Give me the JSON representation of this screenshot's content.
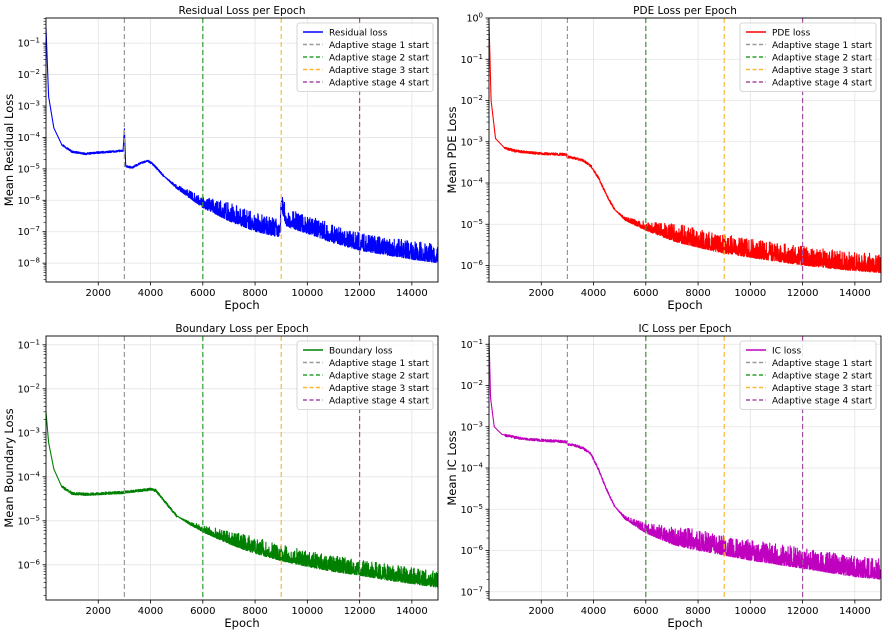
{
  "chart_data": [
    {
      "type": "line",
      "title": "Residual Loss per Epoch",
      "xlabel": "Epoch",
      "ylabel": "Mean Residual Loss",
      "yscale": "log",
      "xlim": [
        0,
        15000
      ],
      "ylim_exp": [
        -8.6,
        -0.2
      ],
      "xticks": [
        2000,
        4000,
        6000,
        8000,
        10000,
        12000,
        14000
      ],
      "yticks_exp": [
        -8,
        -7,
        -6,
        -5,
        -4,
        -3,
        -2,
        -1
      ],
      "grid": true,
      "legend_position": "top-right",
      "series": [
        {
          "name": "Residual loss",
          "color": "#0000ff",
          "x": [
            0,
            100,
            300,
            600,
            1000,
            1500,
            2000,
            2500,
            2950,
            3000,
            3050,
            3300,
            3600,
            3900,
            4100,
            4500,
            5000,
            6000,
            7000,
            8000,
            8950,
            9000,
            9200,
            10000,
            11000,
            12000,
            13000,
            14000,
            15000
          ],
          "y": [
            0.3,
            0.002,
            0.0002,
            6e-05,
            3.5e-05,
            3e-05,
            3.3e-05,
            3.5e-05,
            3.8e-05,
            0.00018,
            1.2e-05,
            1.1e-05,
            1.5e-05,
            1.8e-05,
            1.4e-05,
            6e-06,
            2.5e-06,
            7e-07,
            3e-07,
            1.4e-07,
            9e-08,
            7e-07,
            2e-07,
            1.2e-07,
            6e-08,
            3.5e-08,
            2.5e-08,
            1.8e-08,
            1.4e-08
          ],
          "noise_after": 4500,
          "noise_decades": 0.45
        }
      ],
      "vlines": [
        {
          "x": 3000,
          "name": "Adaptive stage 1 start",
          "color": "#999999"
        },
        {
          "x": 6000,
          "name": "Adaptive stage 2 start",
          "color": "#2ca02c"
        },
        {
          "x": 9000,
          "name": "Adaptive stage 3 start",
          "color": "#ffb733"
        },
        {
          "x": 12000,
          "name": "Adaptive stage 4 start",
          "color": "#a64ca6"
        }
      ]
    },
    {
      "type": "line",
      "title": "PDE Loss per Epoch",
      "xlabel": "Epoch",
      "ylabel": "Mean PDE Loss",
      "yscale": "log",
      "xlim": [
        0,
        15000
      ],
      "ylim_exp": [
        -6.4,
        0
      ],
      "xticks": [
        2000,
        4000,
        6000,
        8000,
        10000,
        12000,
        14000
      ],
      "yticks_exp": [
        -6,
        -5,
        -4,
        -3,
        -2,
        -1,
        0
      ],
      "grid": true,
      "legend_position": "top-right",
      "series": [
        {
          "name": "PDE loss",
          "color": "#ff0000",
          "x": [
            0,
            80,
            250,
            600,
            1000,
            1500,
            2000,
            2500,
            2950,
            3000,
            3300,
            3600,
            3900,
            4200,
            4500,
            4800,
            5200,
            6000,
            7000,
            8000,
            9000,
            10000,
            11000,
            12000,
            13000,
            14000,
            15000
          ],
          "y": [
            0.8,
            0.01,
            0.0012,
            0.0007,
            0.0006,
            0.00055,
            0.00052,
            0.0005,
            0.00049,
            0.00043,
            0.0004,
            0.00035,
            0.00026,
            0.00013,
            5e-05,
            2.3e-05,
            1.3e-05,
            8e-06,
            5e-06,
            3.5e-06,
            2.5e-06,
            2e-06,
            1.6e-06,
            1.3e-06,
            1.1e-06,
            9.5e-07,
            8.5e-07
          ],
          "noise_after": 4800,
          "noise_decades": 0.35
        }
      ],
      "vlines": [
        {
          "x": 3000,
          "name": "Adaptive stage 1 start",
          "color": "#999999"
        },
        {
          "x": 6000,
          "name": "Adaptive stage 2 start",
          "color": "#2ca02c"
        },
        {
          "x": 9000,
          "name": "Adaptive stage 3 start",
          "color": "#ffb733"
        },
        {
          "x": 12000,
          "name": "Adaptive stage 4 start",
          "color": "#a64ca6"
        }
      ]
    },
    {
      "type": "line",
      "title": "Boundary Loss per Epoch",
      "xlabel": "Epoch",
      "ylabel": "Mean Boundary Loss",
      "yscale": "log",
      "xlim": [
        0,
        15000
      ],
      "ylim_exp": [
        -6.8,
        -0.8
      ],
      "xticks": [
        2000,
        4000,
        6000,
        8000,
        10000,
        12000,
        14000
      ],
      "yticks_exp": [
        -6,
        -5,
        -4,
        -3,
        -2,
        -1
      ],
      "grid": true,
      "legend_position": "top-right",
      "series": [
        {
          "name": "Boundary loss",
          "color": "#008000",
          "x": [
            0,
            100,
            300,
            600,
            1000,
            1500,
            2000,
            2500,
            2950,
            3000,
            3500,
            4000,
            4200,
            4600,
            5000,
            5500,
            6000,
            7000,
            8000,
            9000,
            10000,
            11000,
            12000,
            13000,
            14000,
            15000
          ],
          "y": [
            0.003,
            0.0006,
            0.00015,
            6e-05,
            4.2e-05,
            4e-05,
            4.1e-05,
            4.3e-05,
            4.4e-05,
            4.5e-05,
            4.8e-05,
            5.2e-05,
            4.9e-05,
            2.5e-05,
            1.3e-05,
            8.5e-06,
            6e-06,
            3.5e-06,
            2.2e-06,
            1.5e-06,
            1.1e-06,
            8.5e-07,
            7e-07,
            5.5e-07,
            4.5e-07,
            3.7e-07
          ],
          "noise_after": 5000,
          "noise_decades": 0.28
        }
      ],
      "vlines": [
        {
          "x": 3000,
          "name": "Adaptive stage 1 start",
          "color": "#999999"
        },
        {
          "x": 6000,
          "name": "Adaptive stage 2 start",
          "color": "#2ca02c"
        },
        {
          "x": 9000,
          "name": "Adaptive stage 3 start",
          "color": "#ffb733"
        },
        {
          "x": 12000,
          "name": "Adaptive stage 4 start",
          "color": "#a64ca6"
        }
      ]
    },
    {
      "type": "line",
      "title": "IC Loss per Epoch",
      "xlabel": "Epoch",
      "ylabel": "Mean IC Loss",
      "yscale": "log",
      "xlim": [
        0,
        15000
      ],
      "ylim_exp": [
        -7.2,
        -0.8
      ],
      "xticks": [
        2000,
        4000,
        6000,
        8000,
        10000,
        12000,
        14000
      ],
      "yticks_exp": [
        -7,
        -6,
        -5,
        -4,
        -3,
        -2,
        -1
      ],
      "grid": true,
      "legend_position": "top-right",
      "series": [
        {
          "name": "IC loss",
          "color": "#bf00bf",
          "x": [
            0,
            60,
            200,
            500,
            1000,
            1500,
            2000,
            2500,
            2950,
            3000,
            3300,
            3600,
            3900,
            4200,
            4500,
            4800,
            5200,
            6000,
            7000,
            8000,
            9000,
            10000,
            11000,
            12000,
            13000,
            14000,
            15000
          ],
          "y": [
            0.15,
            0.005,
            0.001,
            0.00065,
            0.00055,
            0.0005,
            0.00047,
            0.00045,
            0.00043,
            0.00038,
            0.00035,
            0.0003,
            0.00022,
            9e-05,
            3e-05,
            1.2e-05,
            6e-06,
            3e-06,
            1.8e-06,
            1.3e-06,
            1e-06,
            7.5e-07,
            6e-07,
            4.8e-07,
            3.8e-07,
            3e-07,
            2.6e-07
          ],
          "noise_after": 4800,
          "noise_decades": 0.38
        }
      ],
      "vlines": [
        {
          "x": 3000,
          "name": "Adaptive stage 1 start",
          "color": "#999999"
        },
        {
          "x": 6000,
          "name": "Adaptive stage 2 start",
          "color": "#2ca02c"
        },
        {
          "x": 9000,
          "name": "Adaptive stage 3 start",
          "color": "#ffb733"
        },
        {
          "x": 12000,
          "name": "Adaptive stage 4 start",
          "color": "#a64ca6"
        }
      ]
    }
  ]
}
